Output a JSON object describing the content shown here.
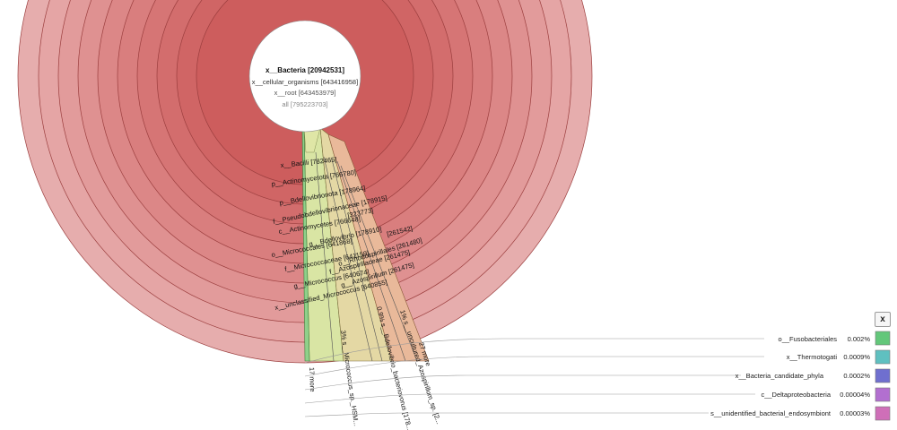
{
  "colors": {
    "ring_fill": [
      "#cd5d5d",
      "#d06565",
      "#d36d6d",
      "#d67575",
      "#d97e7e",
      "#dc8787",
      "#df9191",
      "#e29b9b",
      "#e5a5a5",
      "#e6adad"
    ],
    "ring_stroke": "#9b3e3e",
    "bacilli": "#d9e5a4",
    "bdello": "#e4d8a4",
    "azospirillum": "#e9b99a",
    "more_green": "#8fd08a",
    "center_bg": "#ffffff"
  },
  "center": {
    "lines": [
      "x__Bacteria [20942531]",
      "x__cellular_organisms [643416958]",
      "x__root [643453979]",
      "all [795223703]"
    ]
  },
  "ring_labels": [
    "x__Bacilli [782465]",
    "p__Actinomycetota [766780]",
    "p__Bdellovibrionota [178964]",
    "f__Pseudobdellovibrionaceae [178915]",
    "c__Actinomycetes [766648]",
    "[323773]",
    "g__Bdellovibrio [178910]",
    "o__Micrococcales [641868]",
    "[261542]",
    "o__Rhodospirillales [261480]",
    "f__Micrococcaceae [641159]",
    "f__Azospirillaceae [261475]",
    "g__Micrococcus [640674]",
    "g__Azospirillum [261475]",
    "x__unclassified_Micrococcus [640855]"
  ],
  "radial_labels": [
    "17 more",
    "3% s__Micrococcus_sp._HSM...",
    "0.9% s__Bdellovibrio_bacteriovorus [178...",
    "1% s__uncultured_Azospirillum_sp. [2...",
    "27 more"
  ],
  "legend": {
    "close_label": "x",
    "items": [
      {
        "name": "o__Fusobacteriales",
        "pct": "0.002%",
        "color": "#63c77a"
      },
      {
        "name": "x__Thermotogati",
        "pct": "0.0009%",
        "color": "#5fc0c0"
      },
      {
        "name": "x__Bacteria_candidate_phyla",
        "pct": "0.0002%",
        "color": "#6f6fcf"
      },
      {
        "name": "c__Deltaproteobacteria",
        "pct": "0.00004%",
        "color": "#b26fd0"
      },
      {
        "name": "s__unidentified_bacterial_endosymbiont",
        "pct": "0.00003%",
        "color": "#cf6fb8"
      }
    ]
  }
}
